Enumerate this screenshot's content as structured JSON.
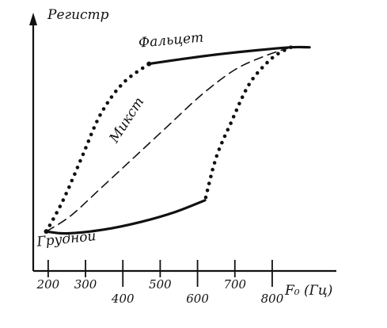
{
  "chart_data": {
    "type": "line",
    "title": "",
    "xlabel": "F₀ (Гц)",
    "ylabel": "Регистр",
    "xlim": [
      160,
      940
    ],
    "ylim": [
      0,
      1
    ],
    "x_ticks": [
      200,
      300,
      400,
      500,
      600,
      700,
      800
    ],
    "y_ticks": [],
    "grid": false,
    "legend": "none",
    "colors": {
      "ink": "#111111",
      "background": "#ffffff"
    },
    "series": [
      {
        "name": "Грудной",
        "style": "solid",
        "points": [
          [
            195,
            0.04
          ],
          [
            250,
            0.03
          ],
          [
            350,
            0.05
          ],
          [
            450,
            0.09
          ],
          [
            540,
            0.14
          ],
          [
            620,
            0.2
          ]
        ]
      },
      {
        "name": "Фальцет",
        "style": "solid",
        "points": [
          [
            470,
            0.9
          ],
          [
            560,
            0.925
          ],
          [
            660,
            0.95
          ],
          [
            760,
            0.97
          ],
          [
            850,
            0.985
          ],
          [
            900,
            0.985
          ]
        ]
      },
      {
        "name": "Микст",
        "style": "dashed",
        "points": [
          [
            195,
            0.04
          ],
          [
            260,
            0.12
          ],
          [
            340,
            0.26
          ],
          [
            430,
            0.42
          ],
          [
            520,
            0.58
          ],
          [
            610,
            0.74
          ],
          [
            700,
            0.87
          ],
          [
            780,
            0.94
          ],
          [
            850,
            0.985
          ]
        ]
      },
      {
        "name": "",
        "style": "dotted",
        "direction": "rising",
        "points": [
          [
            195,
            0.04
          ],
          [
            240,
            0.2
          ],
          [
            290,
            0.42
          ],
          [
            340,
            0.64
          ],
          [
            400,
            0.8
          ],
          [
            470,
            0.9
          ]
        ]
      },
      {
        "name": "",
        "style": "dotted",
        "direction": "falling",
        "points": [
          [
            850,
            0.985
          ],
          [
            800,
            0.93
          ],
          [
            740,
            0.8
          ],
          [
            690,
            0.6
          ],
          [
            650,
            0.42
          ],
          [
            620,
            0.2
          ]
        ]
      }
    ]
  }
}
